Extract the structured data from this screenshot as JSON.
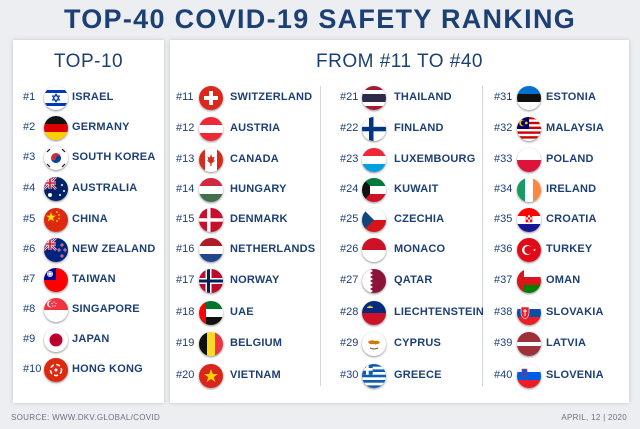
{
  "title": "TOP-40 COVID-19 SAFETY RANKING",
  "left_panel_title": "TOP-10",
  "right_panel_title": "FROM #11 TO #40",
  "source": "SOURCE: WWW.DKV.GLOBAL/COVID",
  "date": "APRIL, 12 | 2020",
  "columns": [
    [
      {
        "rank": "#1",
        "country": "ISRAEL",
        "flag": "israel-flag-icon"
      },
      {
        "rank": "#2",
        "country": "GERMANY",
        "flag": "germany-flag-icon"
      },
      {
        "rank": "#3",
        "country": "SOUTH KOREA",
        "flag": "south-korea-flag-icon"
      },
      {
        "rank": "#4",
        "country": "AUSTRALIA",
        "flag": "australia-flag-icon"
      },
      {
        "rank": "#5",
        "country": "CHINA",
        "flag": "china-flag-icon"
      },
      {
        "rank": "#6",
        "country": "NEW ZEALAND",
        "flag": "new-zealand-flag-icon"
      },
      {
        "rank": "#7",
        "country": "TAIWAN",
        "flag": "taiwan-flag-icon"
      },
      {
        "rank": "#8",
        "country": "SINGAPORE",
        "flag": "singapore-flag-icon"
      },
      {
        "rank": "#9",
        "country": "JAPAN",
        "flag": "japan-flag-icon"
      },
      {
        "rank": "#10",
        "country": "HONG KONG",
        "flag": "hong-kong-flag-icon"
      }
    ],
    [
      {
        "rank": "#11",
        "country": "SWITZERLAND",
        "flag": "switzerland-flag-icon"
      },
      {
        "rank": "#12",
        "country": "AUSTRIA",
        "flag": "austria-flag-icon"
      },
      {
        "rank": "#13",
        "country": "CANADA",
        "flag": "canada-flag-icon"
      },
      {
        "rank": "#14",
        "country": "HUNGARY",
        "flag": "hungary-flag-icon"
      },
      {
        "rank": "#15",
        "country": "DENMARK",
        "flag": "denmark-flag-icon"
      },
      {
        "rank": "#16",
        "country": "NETHERLANDS",
        "flag": "netherlands-flag-icon"
      },
      {
        "rank": "#17",
        "country": "NORWAY",
        "flag": "norway-flag-icon"
      },
      {
        "rank": "#18",
        "country": "UAE",
        "flag": "uae-flag-icon"
      },
      {
        "rank": "#19",
        "country": "BELGIUM",
        "flag": "belgium-flag-icon"
      },
      {
        "rank": "#20",
        "country": "VIETNAM",
        "flag": "vietnam-flag-icon"
      }
    ],
    [
      {
        "rank": "#21",
        "country": "THAILAND",
        "flag": "thailand-flag-icon"
      },
      {
        "rank": "#22",
        "country": "FINLAND",
        "flag": "finland-flag-icon"
      },
      {
        "rank": "#23",
        "country": "LUXEMBOURG",
        "flag": "luxembourg-flag-icon"
      },
      {
        "rank": "#24",
        "country": "KUWAIT",
        "flag": "kuwait-flag-icon"
      },
      {
        "rank": "#25",
        "country": "CZECHIA",
        "flag": "czechia-flag-icon"
      },
      {
        "rank": "#26",
        "country": "MONACO",
        "flag": "monaco-flag-icon"
      },
      {
        "rank": "#27",
        "country": "QATAR",
        "flag": "qatar-flag-icon"
      },
      {
        "rank": "#28",
        "country": "LIECHTENSTEIN",
        "flag": "liechtenstein-flag-icon"
      },
      {
        "rank": "#29",
        "country": "CYPRUS",
        "flag": "cyprus-flag-icon"
      },
      {
        "rank": "#30",
        "country": "GREECE",
        "flag": "greece-flag-icon"
      }
    ],
    [
      {
        "rank": "#31",
        "country": "ESTONIA",
        "flag": "estonia-flag-icon"
      },
      {
        "rank": "#32",
        "country": "MALAYSIA",
        "flag": "malaysia-flag-icon"
      },
      {
        "rank": "#33",
        "country": "POLAND",
        "flag": "poland-flag-icon"
      },
      {
        "rank": "#34",
        "country": "IRELAND",
        "flag": "ireland-flag-icon"
      },
      {
        "rank": "#35",
        "country": "CROATIA",
        "flag": "croatia-flag-icon"
      },
      {
        "rank": "#36",
        "country": "TURKEY",
        "flag": "turkey-flag-icon"
      },
      {
        "rank": "#37",
        "country": "OMAN",
        "flag": "oman-flag-icon"
      },
      {
        "rank": "#38",
        "country": "SLOVAKIA",
        "flag": "slovakia-flag-icon"
      },
      {
        "rank": "#39",
        "country": "LATVIA",
        "flag": "latvia-flag-icon"
      },
      {
        "rank": "#40",
        "country": "SLOVENIA",
        "flag": "slovenia-flag-icon"
      }
    ]
  ],
  "colors": {
    "text": "#1c3f74",
    "background": "#eceef1",
    "panel": "#ffffff"
  }
}
